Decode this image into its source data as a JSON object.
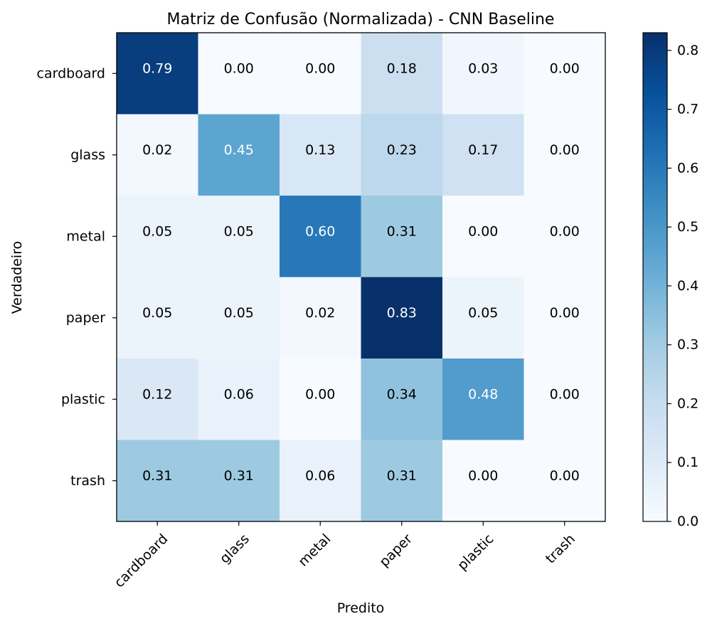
{
  "chart_data": {
    "type": "heatmap",
    "title": "Matriz de Confusão (Normalizada) - CNN Baseline",
    "xlabel": "Predito",
    "ylabel": "Verdadeiro",
    "x_categories": [
      "cardboard",
      "glass",
      "metal",
      "paper",
      "plastic",
      "trash"
    ],
    "y_categories": [
      "cardboard",
      "glass",
      "metal",
      "paper",
      "plastic",
      "trash"
    ],
    "values": [
      [
        0.79,
        0.0,
        0.0,
        0.18,
        0.03,
        0.0
      ],
      [
        0.02,
        0.45,
        0.13,
        0.23,
        0.17,
        0.0
      ],
      [
        0.05,
        0.05,
        0.6,
        0.31,
        0.0,
        0.0
      ],
      [
        0.05,
        0.05,
        0.02,
        0.83,
        0.05,
        0.0
      ],
      [
        0.12,
        0.06,
        0.0,
        0.34,
        0.48,
        0.0
      ],
      [
        0.31,
        0.31,
        0.06,
        0.31,
        0.0,
        0.0
      ]
    ],
    "value_format": "0.00",
    "colormap": "Blues",
    "vmin": 0.0,
    "vmax": 0.83,
    "colorbar": {
      "ticks": [
        "0.0",
        "0.1",
        "0.2",
        "0.3",
        "0.4",
        "0.5",
        "0.6",
        "0.7",
        "0.8"
      ],
      "tick_values": [
        0.0,
        0.1,
        0.2,
        0.3,
        0.4,
        0.5,
        0.6,
        0.7,
        0.8
      ]
    },
    "grid": false
  }
}
